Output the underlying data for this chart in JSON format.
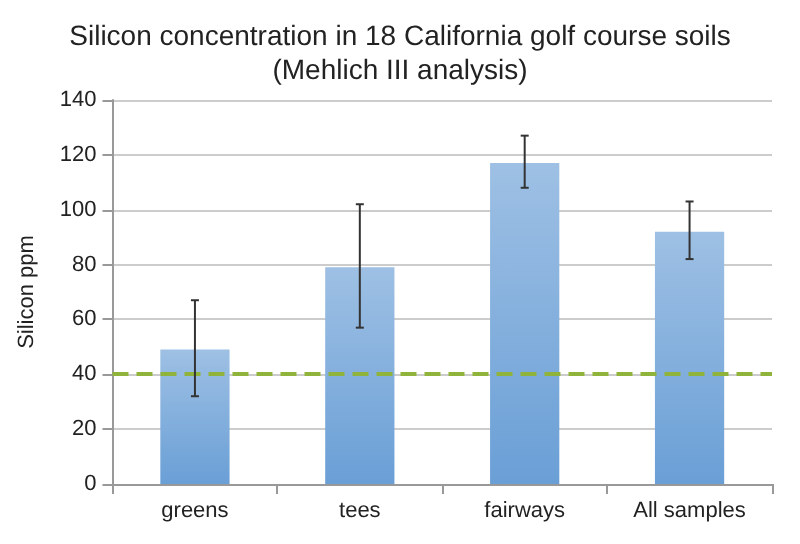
{
  "chart_data": {
    "type": "bar",
    "title": "Silicon concentration in 18 California golf course soils\n(Mehlich III analysis)",
    "ylabel": "Silicon ppm",
    "categories": [
      "greens",
      "tees",
      "fairways",
      "All samples"
    ],
    "values": [
      49,
      79,
      117,
      92
    ],
    "errors": [
      [
        32,
        67
      ],
      [
        57,
        102
      ],
      [
        108,
        127
      ],
      [
        82,
        103
      ]
    ],
    "color": "#6a9fd6",
    "ylim": [
      0,
      140
    ],
    "yticks": [
      0,
      20,
      40,
      60,
      80,
      100,
      120,
      140
    ],
    "grid": "y",
    "ref_lines": [
      {
        "axis": "y",
        "value": 40,
        "color": "#8fb33b",
        "line_style": "dashed"
      }
    ]
  }
}
